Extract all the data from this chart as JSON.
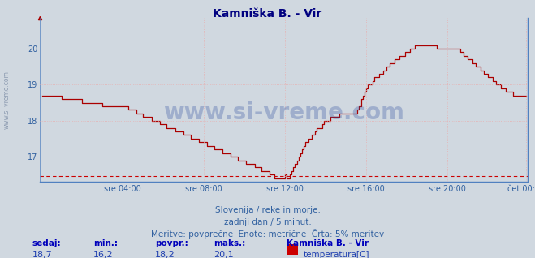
{
  "title": "Kamniška B. - Vir",
  "title_color": "#000080",
  "title_fontsize": 10,
  "bg_color": "#d0d8e0",
  "plot_bg_color": "#d0d8e0",
  "line_color": "#aa0000",
  "grid_color": "#e8b0b0",
  "axis_label_color": "#3060a0",
  "y_ticks": [
    17,
    18,
    19,
    20
  ],
  "y_min": 16.3,
  "y_max": 20.85,
  "x_labels": [
    "sre 04:00",
    "sre 08:00",
    "sre 12:00",
    "sre 16:00",
    "sre 20:00",
    "čet 00:00"
  ],
  "n_points": 288,
  "subtitle1": "Slovenija / reke in morje.",
  "subtitle2": "zadnji dan / 5 minut.",
  "subtitle3": "Meritve: povprečne  Enote: metrične  Črta: 5% meritev",
  "watermark": "www.si-vreme.com",
  "stats_labels": [
    "sedaj:",
    "min.:",
    "povpr.:",
    "maks.:"
  ],
  "stats_values": [
    "18,7",
    "16,2",
    "18,2",
    "20,1"
  ],
  "legend_station": "Kamniška B. - Vir",
  "legend_label": "temperatura[C]",
  "dashed_line_y": 16.47,
  "dashed_line_color": "#cc0000",
  "sidewater_text": "www.si-vreme.com",
  "spine_color": "#5080c0"
}
